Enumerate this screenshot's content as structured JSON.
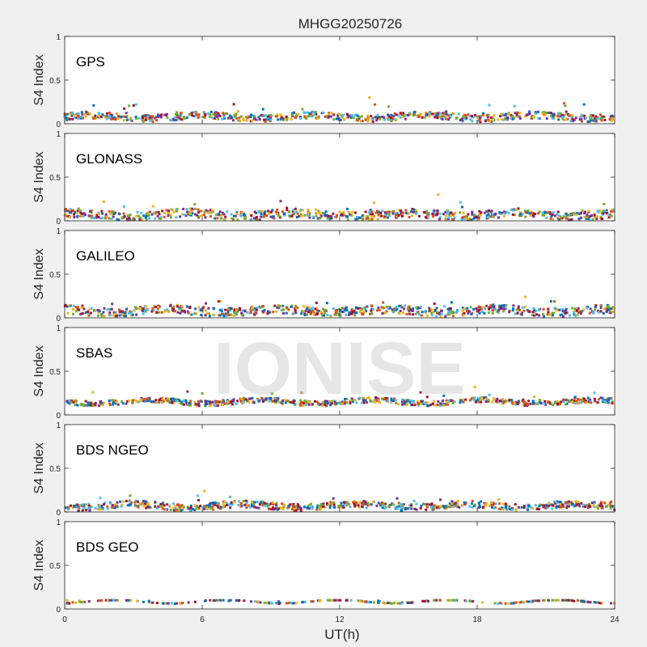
{
  "title": "MHGG20250726",
  "watermark": "IONISE",
  "chart_data": [
    {
      "type": "scatter",
      "panel_label": "GPS",
      "ylabel": "S4 Index",
      "xlabel": "",
      "xlim": [
        0,
        24
      ],
      "ylim": [
        0,
        1
      ],
      "yticks": [
        "0",
        "0.5",
        "1"
      ],
      "baseline": 0.08,
      "spread": 0.04,
      "spike_max": 0.3,
      "spike_at": 13.3
    },
    {
      "type": "scatter",
      "panel_label": "GLONASS",
      "ylabel": "S4 Index",
      "xlabel": "",
      "xlim": [
        0,
        24
      ],
      "ylim": [
        0,
        1
      ],
      "yticks": [
        "0",
        "0.5",
        "1"
      ],
      "baseline": 0.07,
      "spread": 0.05,
      "spike_max": 0.3,
      "spike_at": 16.3
    },
    {
      "type": "scatter",
      "panel_label": "GALILEO",
      "ylabel": "S4 Index",
      "xlabel": "",
      "xlim": [
        0,
        24
      ],
      "ylim": [
        0,
        1
      ],
      "yticks": [
        "0",
        "0.5",
        "1"
      ],
      "baseline": 0.08,
      "spread": 0.05,
      "spike_max": 0.24,
      "spike_at": 20.1
    },
    {
      "type": "scatter",
      "panel_label": "SBAS",
      "ylabel": "S4 Index",
      "xlabel": "",
      "xlim": [
        0,
        24
      ],
      "ylim": [
        0,
        1
      ],
      "yticks": [
        "0",
        "0.5",
        "1"
      ],
      "baseline": 0.15,
      "spread": 0.03,
      "spike_max": 0.32,
      "spike_at": 17.9
    },
    {
      "type": "scatter",
      "panel_label": "BDS NGEO",
      "ylabel": "S4 Index",
      "xlabel": "",
      "xlim": [
        0,
        24
      ],
      "ylim": [
        0,
        1
      ],
      "yticks": [
        "0",
        "0.5",
        "1"
      ],
      "baseline": 0.07,
      "spread": 0.04,
      "spike_max": 0.24,
      "spike_at": 6.1
    },
    {
      "type": "scatter",
      "panel_label": "BDS GEO",
      "ylabel": "S4 Index",
      "xlabel": "UT(h)",
      "xlim": [
        0,
        24
      ],
      "ylim": [
        0,
        1
      ],
      "yticks": [
        "0",
        "0.5",
        "1"
      ],
      "xticks": [
        "0",
        "6",
        "12",
        "18",
        "24"
      ],
      "baseline": 0.085,
      "spread": 0.005,
      "spike_max": 0.1,
      "spike_at": 0.1
    }
  ],
  "series_colors": [
    "#0072BD",
    "#D95319",
    "#EDB120",
    "#7E2F8E",
    "#77AC30",
    "#4DBEEE",
    "#A2142F"
  ]
}
